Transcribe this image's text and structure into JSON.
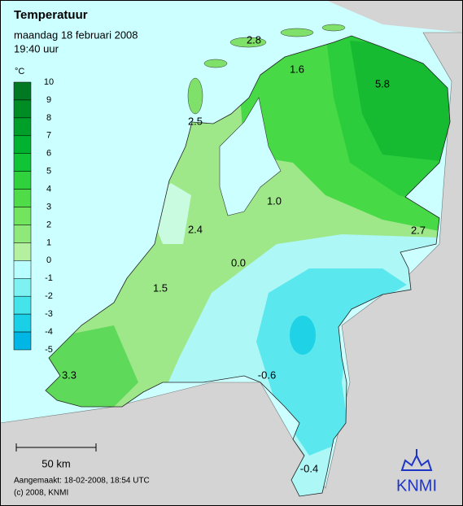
{
  "header": {
    "title": "Temperatuur",
    "date": "maandag 18 februari 2008",
    "time": "19:40 uur"
  },
  "legend": {
    "unit": "°C",
    "ticks": [
      "10",
      "9",
      "8",
      "7",
      "6",
      "5",
      "4",
      "3",
      "2",
      "1",
      "0",
      "-1",
      "-2",
      "-3",
      "-4",
      "-5"
    ],
    "colors": [
      "#007a22",
      "#008c25",
      "#009f2a",
      "#00b22f",
      "#11c436",
      "#2fd23c",
      "#4fdc48",
      "#73e45e",
      "#8fe87a",
      "#b4f0a0",
      "#b9ffff",
      "#7ef2f2",
      "#45e3ea",
      "#1ad0e6",
      "#00b6e4"
    ]
  },
  "labels": [
    "2.8",
    "1.6",
    "5.8",
    "2.5",
    "1.0",
    "2.4",
    "2.7",
    "0.0",
    "1.5",
    "-0.6",
    "3.3",
    "-0.4"
  ],
  "scale_bar": "50 km",
  "footer": {
    "created": "Aangemaakt: 18-02-2008, 18:54 UTC",
    "copyright": "(c) 2008, KNMI"
  },
  "logo": "KNMI"
}
